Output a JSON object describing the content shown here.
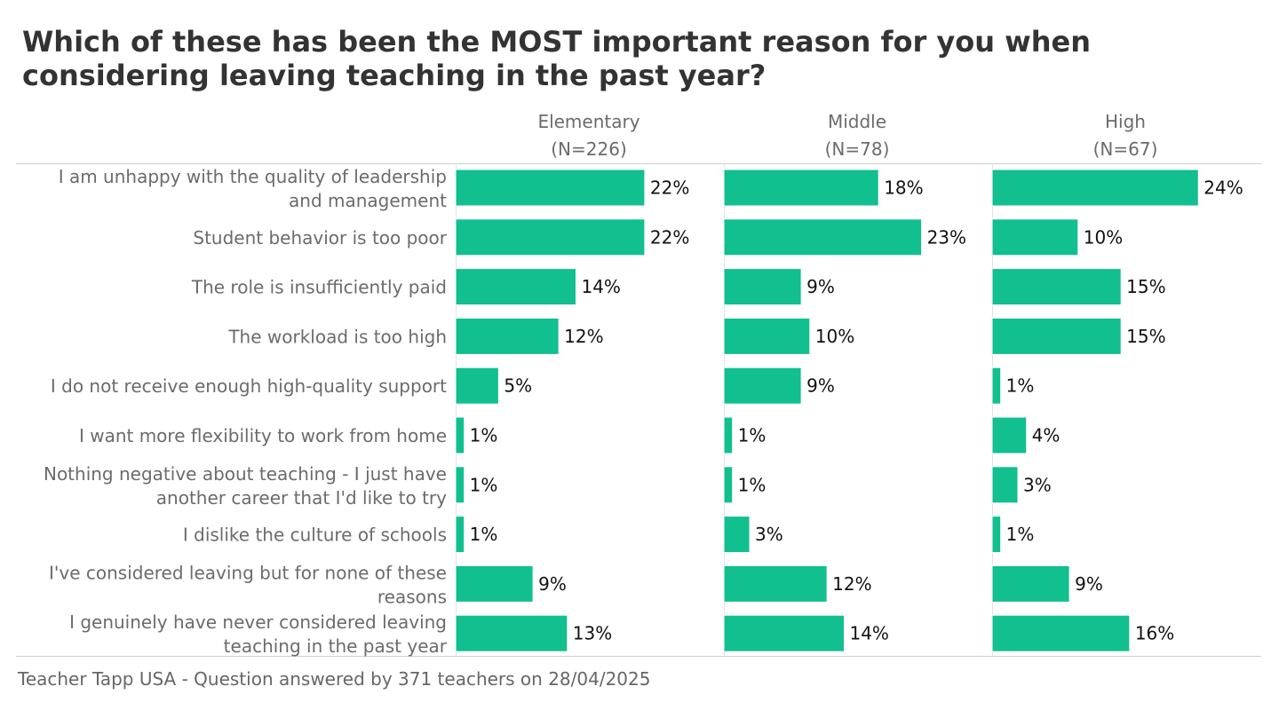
{
  "title": "Which of these has been the MOST important reason for you when considering leaving teaching in the past year?",
  "footer": "Teacher Tapp USA - Question answered by 371 teachers on 28/04/2025",
  "colors": {
    "bar": "#12bf8f",
    "axis": "#cccccc",
    "label": "#6b6b6b",
    "value": "#111111"
  },
  "chart_data": {
    "type": "bar",
    "orientation": "horizontal",
    "categories": [
      "I am unhappy with the quality of leadership and management",
      "Student behavior is too poor",
      "The role is insufficiently paid",
      "The workload is too high",
      "I do not receive enough high-quality support",
      "I want more flexibility to work from home",
      "Nothing negative about teaching - I just have another career that I'd like to try",
      "I dislike the culture of schools",
      "I've considered leaving but for none of these reasons",
      "I genuinely have never considered leaving teaching in the past year"
    ],
    "category_lines": [
      [
        "I am unhappy with the quality of leadership",
        "and management"
      ],
      [
        "Student behavior is too poor"
      ],
      [
        "The role is insufficiently paid"
      ],
      [
        "The workload is too high"
      ],
      [
        "I do not receive enough high-quality support"
      ],
      [
        "I want more flexibility to work from home"
      ],
      [
        "Nothing negative about teaching - I just have",
        "another career that I'd like to try"
      ],
      [
        "I dislike the culture of schools"
      ],
      [
        "I've considered leaving but for none of these",
        "reasons"
      ],
      [
        "I genuinely have never considered leaving",
        "teaching in the past year"
      ]
    ],
    "series": [
      {
        "name": "Elementary",
        "subtitle": "(N=226)",
        "values": [
          22,
          22,
          14,
          12,
          5,
          1,
          1,
          1,
          9,
          13
        ]
      },
      {
        "name": "Middle",
        "subtitle": "(N=78)",
        "values": [
          18,
          23,
          9,
          10,
          9,
          1,
          1,
          3,
          12,
          14
        ]
      },
      {
        "name": "High",
        "subtitle": "(N=67)",
        "values": [
          24,
          10,
          15,
          15,
          1,
          4,
          3,
          1,
          9,
          16
        ]
      }
    ],
    "value_suffix": "%",
    "xlim": [
      0,
      31
    ],
    "grid": false
  }
}
